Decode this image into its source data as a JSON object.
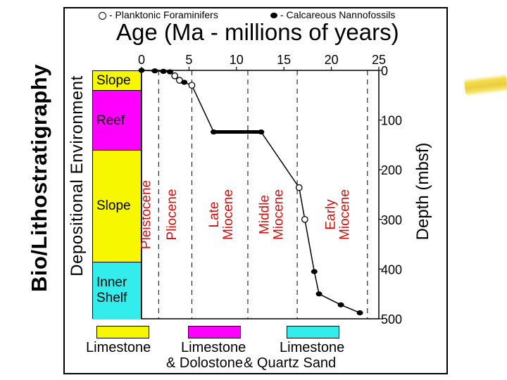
{
  "slide": {
    "title": "Bio/Lithostratigraphy",
    "accent_color": "#f0d43a"
  },
  "legend": {
    "open_circle_label": "- Planktonic Foraminifers",
    "filled_dot_label": "- Calcareous Nannofossils"
  },
  "environment": {
    "axis_label": "Depositional Environment",
    "bands": [
      {
        "label": "Slope",
        "color": "#f7f700",
        "depth_top": 0,
        "depth_bottom": 40
      },
      {
        "label": "Reef",
        "color": "#ff00ff",
        "depth_top": 40,
        "depth_bottom": 160
      },
      {
        "label": "Slope",
        "color": "#f7f700",
        "depth_top": 160,
        "depth_bottom": 385
      },
      {
        "label": "Inner\nShelf",
        "color": "#33ecec",
        "depth_top": 385,
        "depth_bottom": 500
      }
    ]
  },
  "chart_data": {
    "type": "line",
    "title": "Age (Ma - millions of years)",
    "xlabel": "Age (Ma - millions of years)",
    "ylabel": "Depth (mbsf)",
    "xlim": [
      0,
      25
    ],
    "ylim": [
      500,
      0
    ],
    "x_ticks": [
      0,
      5,
      10,
      15,
      20,
      25
    ],
    "y_ticks": [
      0,
      100,
      200,
      300,
      400,
      500
    ],
    "epoch_boundaries": [
      1.8,
      5.3,
      11.2,
      16.4,
      23.8
    ],
    "epochs": [
      {
        "label": "Pleistocene",
        "age_mid": 0.4
      },
      {
        "label": "Pliocene",
        "age_mid": 3.1
      },
      {
        "label": "Late\nMiocene",
        "age_mid": 8.3
      },
      {
        "label": "Middle\nMiocene",
        "age_mid": 13.6
      },
      {
        "label": "Early\nMiocene",
        "age_mid": 20.6
      }
    ],
    "epoch_color": "#cc1111",
    "series": [
      {
        "name": "Age-depth curve",
        "points": [
          {
            "age": 0.0,
            "depth": 0,
            "marker": "filled"
          },
          {
            "age": 1.4,
            "depth": 1,
            "marker": "filled"
          },
          {
            "age": 2.3,
            "depth": 2,
            "marker": "filled"
          },
          {
            "age": 3.0,
            "depth": 3,
            "marker": "filled"
          },
          {
            "age": 3.5,
            "depth": 11,
            "marker": "open"
          },
          {
            "age": 4.0,
            "depth": 20,
            "marker": "open"
          },
          {
            "age": 4.5,
            "depth": 24,
            "marker": "filled"
          },
          {
            "age": 5.3,
            "depth": 30,
            "marker": "open"
          },
          {
            "age": 7.6,
            "depth": 124,
            "marker": "filled"
          },
          {
            "age": 12.6,
            "depth": 124,
            "marker": "filled"
          },
          {
            "age": 16.6,
            "depth": 236,
            "marker": "open"
          },
          {
            "age": 17.2,
            "depth": 300,
            "marker": "open"
          },
          {
            "age": 18.2,
            "depth": 405,
            "marker": "filled"
          },
          {
            "age": 18.7,
            "depth": 450,
            "marker": "filled"
          },
          {
            "age": 21.0,
            "depth": 472,
            "marker": "filled"
          },
          {
            "age": 23.0,
            "depth": 488,
            "marker": "filled"
          }
        ]
      }
    ],
    "thick_segment": {
      "age_start": 7.6,
      "age_end": 12.6,
      "depth": 124
    }
  },
  "lithology": {
    "items": [
      {
        "color": "#f7f700",
        "line1": "Limestone",
        "line2": ""
      },
      {
        "color": "#ff00ff",
        "line1": "Limestone",
        "line2": "& Dolostone"
      },
      {
        "color": "#33ecec",
        "line1": "Limestone",
        "line2": "& Quartz Sand"
      }
    ]
  }
}
